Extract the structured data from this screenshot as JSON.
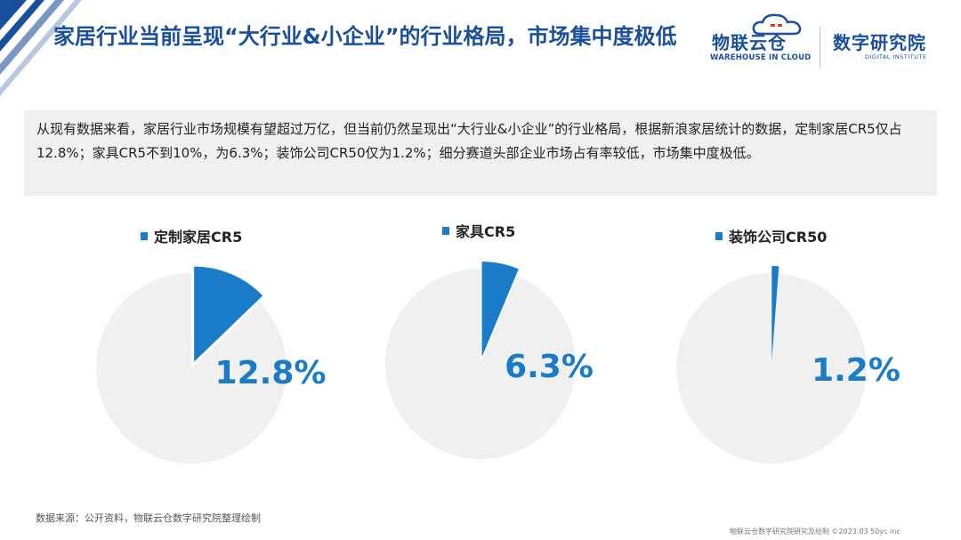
{
  "header": {
    "title": "家居行业当前呈现“大行业&小企业”的行业格局，市场集中度极低"
  },
  "logo": {
    "brand": "物联云仓",
    "brand_en": "WAREHOUSE IN CLOUD",
    "institute": "数字研究院",
    "institute_en": "DIGITAL INSTITUTE"
  },
  "summary": {
    "text": "从现有数据来看，家居行业市场规模有望超过万亿，但当前仍然呈现出“大行业&小企业”的行业格局，根据新浪家居统计的数据，定制家居CR5仅占12.8%；家具CR5不到10%，为6.3%；装饰公司CR50仅为1.2%；细分赛道头部企业市场占有率较低，市场集中度极低。"
  },
  "chart_data": [
    {
      "type": "pie",
      "title": "定制家居CR5",
      "values": [
        12.8,
        87.2
      ],
      "label": "12.8%",
      "colors": [
        "#1a7cc9",
        "#f0f0f0"
      ]
    },
    {
      "type": "pie",
      "title": "家具CR5",
      "values": [
        6.3,
        93.7
      ],
      "label": "6.3%",
      "colors": [
        "#1a7cc9",
        "#f0f0f0"
      ]
    },
    {
      "type": "pie",
      "title": "装饰公司CR50",
      "values": [
        1.2,
        98.8
      ],
      "label": "1.2%",
      "colors": [
        "#1a7cc9",
        "#f0f0f0"
      ]
    }
  ],
  "footer": {
    "source": "数据来源：公开资料，物联云仓数字研究院整理绘制",
    "copyright": "物联云仓数字研究院研究及绘制 ©2023.03 50yc inc"
  },
  "colors": {
    "accent": "#1a7cc9",
    "title": "#1a4f9c",
    "pie_rest": "#f0f0f0"
  }
}
